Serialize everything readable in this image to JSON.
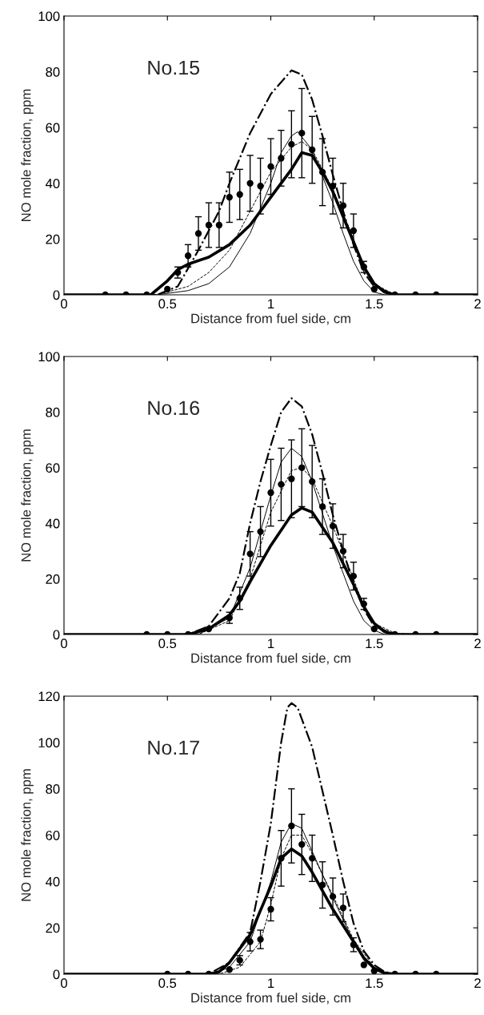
{
  "chart_data": [
    {
      "type": "line",
      "annotations": [
        "No.15"
      ],
      "xlabel": "Distance from fuel side, cm",
      "ylabel": "NO mole fraction, ppm",
      "xlim": [
        0,
        2
      ],
      "xticks": [
        0,
        0.5,
        1,
        1.5,
        2
      ],
      "ylim": [
        0,
        100
      ],
      "yticks": [
        0,
        20,
        40,
        60,
        80,
        100
      ],
      "grid": false,
      "legend": false,
      "series": [
        {
          "type": "scatter",
          "marker": "circle",
          "color": "#000000",
          "x": [
            0.2,
            0.3,
            0.4,
            0.5,
            0.55,
            0.6,
            0.65,
            0.7,
            0.75,
            0.8,
            0.85,
            0.9,
            0.95,
            1.0,
            1.05,
            1.1,
            1.15,
            1.2,
            1.25,
            1.3,
            1.35,
            1.4,
            1.45,
            1.5,
            1.6,
            1.7,
            1.8
          ],
          "values": [
            0,
            0,
            0,
            2,
            8,
            14,
            22,
            25,
            25,
            35,
            36,
            40,
            39,
            46,
            49,
            54,
            58,
            52,
            44,
            39,
            32,
            23,
            10,
            2,
            0,
            0,
            0
          ],
          "errors": [
            null,
            null,
            null,
            null,
            2,
            4,
            6,
            8,
            8,
            9,
            9,
            10,
            10,
            10,
            10,
            12,
            16,
            12,
            12,
            10,
            8,
            6,
            2,
            null,
            null,
            null,
            null
          ]
        },
        {
          "type": "line",
          "line_style": "solid",
          "color": "#000000",
          "x": [
            0,
            0.42,
            0.5,
            0.55,
            0.6,
            0.7,
            0.8,
            0.9,
            1.0,
            1.1,
            1.15,
            1.2,
            1.25,
            1.3,
            1.35,
            1.4,
            1.45,
            1.5,
            1.55,
            1.6,
            2
          ],
          "values": [
            0,
            0,
            5,
            9,
            11,
            13.5,
            18,
            25,
            35,
            45,
            51,
            50,
            44,
            37,
            28,
            19,
            10,
            4,
            1,
            0,
            0
          ]
        },
        {
          "type": "line",
          "line_style": "solid",
          "color": "#000000",
          "x": [
            0,
            0.45,
            0.6,
            0.7,
            0.8,
            0.9,
            1.0,
            1.05,
            1.1,
            1.13,
            1.2,
            1.3,
            1.35,
            1.4,
            1.45,
            1.5,
            1.55,
            2
          ],
          "values": [
            0,
            0,
            1.5,
            4,
            10,
            22,
            40,
            51,
            57,
            58.5,
            52,
            33,
            22,
            12,
            5,
            1,
            0,
            0
          ]
        },
        {
          "type": "line",
          "line_style": "dashed",
          "color": "#000000",
          "x": [
            0,
            0.45,
            0.6,
            0.7,
            0.8,
            0.9,
            1.0,
            1.1,
            1.15,
            1.2,
            1.3,
            1.4,
            1.45,
            1.5,
            1.6,
            2
          ],
          "values": [
            0,
            0,
            3,
            8,
            16,
            30,
            44,
            53,
            55,
            52,
            38,
            20,
            10,
            4,
            0,
            0
          ]
        },
        {
          "type": "line",
          "line_style": "dashdot",
          "color": "#000000",
          "x": [
            0,
            0.45,
            0.55,
            0.65,
            0.75,
            0.8,
            0.9,
            1.0,
            1.1,
            1.15,
            1.2,
            1.25,
            1.3,
            1.35,
            1.4,
            1.45,
            1.5,
            1.6,
            2
          ],
          "values": [
            0,
            0,
            3,
            16,
            30,
            40,
            58,
            72,
            80.5,
            79,
            70,
            57,
            43,
            30,
            18,
            8,
            3,
            0,
            0
          ]
        }
      ]
    },
    {
      "type": "line",
      "annotations": [
        "No.16"
      ],
      "xlabel": "Distance from fuel side, cm",
      "ylabel": "NO mole fraction, ppm",
      "xlim": [
        0,
        2
      ],
      "xticks": [
        0,
        0.5,
        1,
        1.5,
        2
      ],
      "ylim": [
        0,
        100
      ],
      "yticks": [
        0,
        20,
        40,
        60,
        80,
        100
      ],
      "grid": false,
      "legend": false,
      "series": [
        {
          "type": "scatter",
          "marker": "circle",
          "color": "#000000",
          "x": [
            0.4,
            0.5,
            0.6,
            0.7,
            0.8,
            0.85,
            0.9,
            0.95,
            1.0,
            1.05,
            1.1,
            1.15,
            1.2,
            1.25,
            1.3,
            1.35,
            1.4,
            1.45,
            1.5,
            1.6,
            1.7,
            1.8
          ],
          "values": [
            0,
            0,
            0,
            2,
            6,
            13,
            29,
            37,
            51,
            54,
            56,
            60,
            55,
            46,
            39,
            30,
            21,
            11,
            2,
            0,
            0,
            0
          ],
          "errors": [
            null,
            null,
            null,
            null,
            2,
            4,
            8,
            9,
            12,
            13,
            14,
            14,
            13,
            10,
            8,
            6,
            5,
            2,
            null,
            null,
            null,
            null
          ]
        },
        {
          "type": "line",
          "line_style": "solid",
          "color": "#000000",
          "x": [
            0,
            0.6,
            0.7,
            0.8,
            0.85,
            0.9,
            1.0,
            1.1,
            1.15,
            1.2,
            1.3,
            1.4,
            1.45,
            1.5,
            1.55,
            1.6,
            2
          ],
          "values": [
            0,
            0,
            2,
            7,
            12,
            19,
            32,
            43,
            45.5,
            44,
            33,
            18,
            10,
            4,
            1,
            0,
            0
          ]
        },
        {
          "type": "line",
          "line_style": "solid",
          "color": "#000000",
          "x": [
            0,
            0.65,
            0.8,
            0.9,
            1.0,
            1.05,
            1.1,
            1.15,
            1.2,
            1.3,
            1.4,
            1.45,
            1.5,
            1.55,
            2
          ],
          "values": [
            0,
            0,
            6,
            24,
            50,
            62,
            67,
            64,
            55,
            32,
            12,
            5,
            1.5,
            0,
            0
          ]
        },
        {
          "type": "line",
          "line_style": "dashed",
          "color": "#000000",
          "x": [
            0,
            0.65,
            0.8,
            0.9,
            1.0,
            1.1,
            1.15,
            1.2,
            1.3,
            1.4,
            1.45,
            1.5,
            1.6,
            1.7,
            2
          ],
          "values": [
            0,
            0,
            5,
            20,
            44,
            59,
            60,
            56,
            39,
            20,
            10,
            4,
            0.5,
            0,
            0
          ]
        },
        {
          "type": "line",
          "line_style": "dashdot",
          "color": "#000000",
          "x": [
            0,
            0.6,
            0.7,
            0.8,
            0.85,
            0.9,
            0.95,
            1.0,
            1.05,
            1.1,
            1.15,
            1.2,
            1.25,
            1.3,
            1.35,
            1.4,
            1.45,
            1.5,
            1.6,
            2
          ],
          "values": [
            0,
            0,
            3,
            13,
            22,
            40,
            55,
            68,
            80,
            85,
            82,
            72,
            58,
            43,
            30,
            18,
            9,
            3,
            0,
            0
          ]
        }
      ]
    },
    {
      "type": "line",
      "annotations": [
        "No.17"
      ],
      "xlabel": "Distance from fuel side, cm",
      "ylabel": "NO mole fraction, ppm",
      "xlim": [
        0,
        2
      ],
      "xticks": [
        0,
        0.5,
        1,
        1.5,
        2
      ],
      "ylim": [
        0,
        120
      ],
      "yticks": [
        0,
        20,
        40,
        60,
        80,
        100,
        120
      ],
      "grid": false,
      "legend": false,
      "series": [
        {
          "type": "scatter",
          "marker": "circle",
          "color": "#000000",
          "x": [
            0.5,
            0.6,
            0.7,
            0.8,
            0.85,
            0.9,
            0.95,
            1.0,
            1.05,
            1.1,
            1.15,
            1.2,
            1.25,
            1.3,
            1.35,
            1.4,
            1.45,
            1.5,
            1.6,
            1.7,
            1.8
          ],
          "values": [
            0,
            0,
            0,
            2,
            6,
            14,
            15,
            28,
            50,
            64,
            56,
            50,
            38.5,
            33.5,
            28.6,
            12.7,
            4,
            1.4,
            0,
            0,
            0
          ],
          "errors": [
            null,
            null,
            null,
            null,
            2,
            4,
            4,
            5,
            12,
            16,
            13,
            10,
            10,
            8,
            6,
            3,
            null,
            null,
            null,
            null,
            null
          ]
        },
        {
          "type": "line",
          "line_style": "solid",
          "color": "#000000",
          "x": [
            0,
            0.7,
            0.75,
            0.8,
            0.9,
            1.0,
            1.05,
            1.1,
            1.15,
            1.2,
            1.3,
            1.4,
            1.45,
            1.5,
            1.55,
            1.6,
            2
          ],
          "values": [
            0,
            0,
            1,
            5,
            17,
            38,
            50,
            54,
            51,
            44,
            28,
            14,
            7,
            2.5,
            0.5,
            0,
            0
          ]
        },
        {
          "type": "line",
          "line_style": "solid",
          "color": "#000000",
          "x": [
            0,
            0.72,
            0.8,
            0.9,
            1.0,
            1.05,
            1.1,
            1.15,
            1.2,
            1.3,
            1.4,
            1.45,
            1.5,
            1.55,
            2
          ],
          "values": [
            0,
            0,
            3,
            14,
            40,
            57,
            65,
            63,
            53,
            33,
            14,
            6,
            2,
            0,
            0
          ]
        },
        {
          "type": "line",
          "line_style": "dashed",
          "color": "#000000",
          "x": [
            0,
            0.75,
            0.85,
            0.95,
            1.0,
            1.05,
            1.1,
            1.15,
            1.2,
            1.3,
            1.4,
            1.5,
            1.55,
            1.6,
            2
          ],
          "values": [
            0,
            0,
            3,
            14,
            30,
            50,
            60,
            60,
            52,
            34,
            15,
            3,
            0.5,
            0,
            0
          ]
        },
        {
          "type": "line",
          "line_style": "dashdot",
          "color": "#000000",
          "x": [
            0,
            0.7,
            0.8,
            0.9,
            0.95,
            1.0,
            1.05,
            1.08,
            1.1,
            1.13,
            1.2,
            1.3,
            1.35,
            1.4,
            1.45,
            1.5,
            1.55,
            1.6,
            2
          ],
          "values": [
            0,
            0,
            5,
            18,
            40,
            65,
            100,
            115,
            117,
            115,
            98,
            60,
            40,
            22,
            10,
            4,
            1,
            0,
            0
          ]
        }
      ]
    }
  ]
}
